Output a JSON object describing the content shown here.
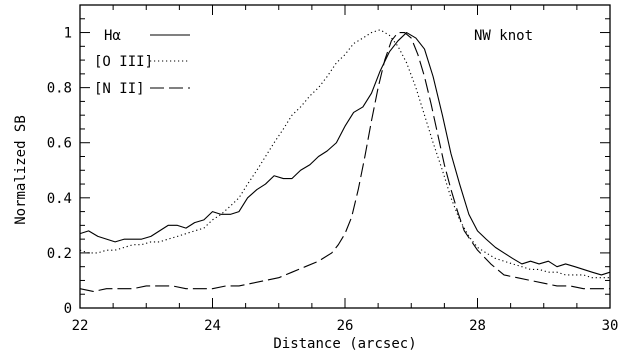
{
  "chart_data": {
    "type": "line",
    "title": "",
    "xlabel": "Distance (arcsec)",
    "ylabel": "Normalized SB",
    "xlim": [
      22,
      30
    ],
    "ylim": [
      0,
      1.1
    ],
    "x_ticks": [
      22,
      24,
      26,
      28,
      30
    ],
    "x_tick_labels": [
      "22",
      "24",
      "26",
      "28",
      "30"
    ],
    "y_ticks": [
      0,
      0.2,
      0.4,
      0.6,
      0.8,
      1
    ],
    "y_tick_labels": [
      "0",
      "0.2",
      "0.4",
      "0.6",
      "0.8",
      "1"
    ],
    "grid": false,
    "legend_position": "top-left",
    "annotation": "NW knot",
    "series": [
      {
        "name": "Hα",
        "style": "solid",
        "x": [
          22.0,
          22.13,
          22.27,
          22.4,
          22.53,
          22.67,
          22.8,
          22.93,
          23.07,
          23.2,
          23.33,
          23.47,
          23.6,
          23.73,
          23.87,
          24.0,
          24.13,
          24.27,
          24.4,
          24.53,
          24.67,
          24.8,
          24.93,
          25.07,
          25.2,
          25.33,
          25.47,
          25.6,
          25.73,
          25.87,
          26.0,
          26.13,
          26.27,
          26.4,
          26.53,
          26.67,
          26.8,
          26.93,
          27.07,
          27.2,
          27.33,
          27.47,
          27.6,
          27.73,
          27.87,
          28.0,
          28.13,
          28.27,
          28.4,
          28.53,
          28.67,
          28.8,
          28.93,
          29.07,
          29.2,
          29.33,
          29.47,
          29.6,
          29.73,
          29.87,
          30.0
        ],
        "y": [
          0.27,
          0.28,
          0.26,
          0.25,
          0.24,
          0.25,
          0.25,
          0.25,
          0.26,
          0.28,
          0.3,
          0.3,
          0.29,
          0.31,
          0.32,
          0.35,
          0.34,
          0.34,
          0.35,
          0.4,
          0.43,
          0.45,
          0.48,
          0.47,
          0.47,
          0.5,
          0.52,
          0.55,
          0.57,
          0.6,
          0.66,
          0.71,
          0.73,
          0.78,
          0.86,
          0.93,
          0.97,
          1.0,
          0.98,
          0.94,
          0.84,
          0.7,
          0.56,
          0.45,
          0.34,
          0.28,
          0.25,
          0.22,
          0.2,
          0.18,
          0.16,
          0.17,
          0.16,
          0.17,
          0.15,
          0.16,
          0.15,
          0.14,
          0.13,
          0.12,
          0.13
        ]
      },
      {
        "name": "[O III]",
        "style": "dotted",
        "x": [
          22.0,
          22.13,
          22.27,
          22.4,
          22.53,
          22.67,
          22.8,
          22.93,
          23.07,
          23.2,
          23.33,
          23.47,
          23.6,
          23.73,
          23.87,
          24.0,
          24.13,
          24.27,
          24.4,
          24.53,
          24.67,
          24.8,
          24.93,
          25.07,
          25.2,
          25.33,
          25.47,
          25.6,
          25.73,
          25.87,
          26.0,
          26.13,
          26.27,
          26.4,
          26.53,
          26.67,
          26.8,
          26.93,
          27.07,
          27.2,
          27.33,
          27.47,
          27.6,
          27.73,
          27.87,
          28.0,
          28.13,
          28.27,
          28.4,
          28.53,
          28.67,
          28.8,
          28.93,
          29.07,
          29.2,
          29.33,
          29.47,
          29.6,
          29.73,
          29.87,
          30.0
        ],
        "y": [
          0.21,
          0.2,
          0.2,
          0.21,
          0.21,
          0.22,
          0.23,
          0.23,
          0.24,
          0.24,
          0.25,
          0.26,
          0.27,
          0.28,
          0.29,
          0.32,
          0.34,
          0.37,
          0.4,
          0.45,
          0.5,
          0.55,
          0.6,
          0.65,
          0.7,
          0.73,
          0.77,
          0.8,
          0.84,
          0.89,
          0.92,
          0.96,
          0.98,
          1.0,
          1.01,
          0.99,
          0.95,
          0.89,
          0.8,
          0.7,
          0.6,
          0.5,
          0.4,
          0.32,
          0.26,
          0.22,
          0.2,
          0.18,
          0.17,
          0.16,
          0.15,
          0.14,
          0.14,
          0.13,
          0.13,
          0.12,
          0.12,
          0.12,
          0.11,
          0.11,
          0.11
        ]
      },
      {
        "name": "[N II]",
        "style": "dashed",
        "x": [
          22.0,
          22.2,
          22.4,
          22.6,
          22.8,
          23.0,
          23.2,
          23.4,
          23.6,
          23.8,
          24.0,
          24.2,
          24.4,
          24.6,
          24.8,
          25.0,
          25.2,
          25.4,
          25.6,
          25.8,
          25.9,
          26.0,
          26.1,
          26.2,
          26.3,
          26.4,
          26.5,
          26.6,
          26.7,
          26.8,
          26.9,
          27.0,
          27.1,
          27.2,
          27.3,
          27.4,
          27.5,
          27.6,
          27.7,
          27.8,
          28.0,
          28.2,
          28.4,
          28.6,
          28.8,
          29.0,
          29.2,
          29.4,
          29.6,
          29.8,
          30.0
        ],
        "y": [
          0.07,
          0.06,
          0.07,
          0.07,
          0.07,
          0.08,
          0.08,
          0.08,
          0.07,
          0.07,
          0.07,
          0.08,
          0.08,
          0.09,
          0.1,
          0.11,
          0.13,
          0.15,
          0.17,
          0.2,
          0.23,
          0.27,
          0.33,
          0.43,
          0.55,
          0.68,
          0.8,
          0.9,
          0.97,
          1.0,
          1.0,
          0.98,
          0.92,
          0.84,
          0.74,
          0.63,
          0.52,
          0.43,
          0.35,
          0.28,
          0.21,
          0.16,
          0.12,
          0.11,
          0.1,
          0.09,
          0.08,
          0.08,
          0.07,
          0.07,
          0.07
        ]
      }
    ]
  }
}
